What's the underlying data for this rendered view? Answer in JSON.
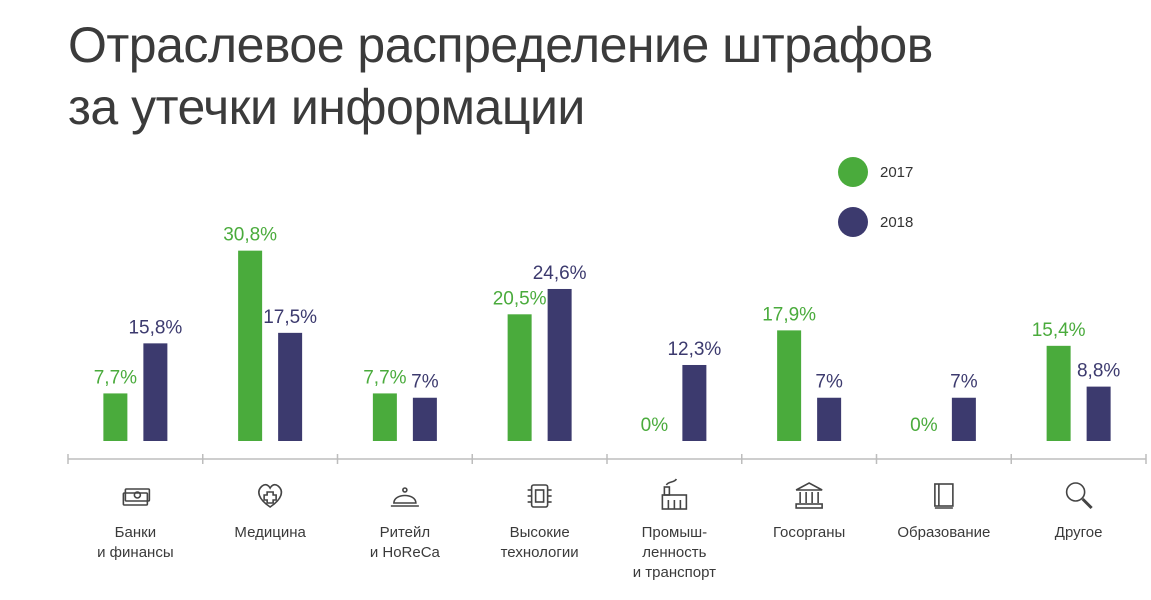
{
  "title_line1": "Отраслевое распределение штрафов",
  "title_line2": "за утечки информации",
  "colors": {
    "s2017": "#4aab3c",
    "s2018": "#3c3a6e",
    "axis": "#bdbdbd"
  },
  "chart_data": {
    "type": "bar",
    "title": "Отраслевое распределение штрафов за утечки информации",
    "categories": [
      "Банки и финансы",
      "Медицина",
      "Ритейл и HoReCa",
      "Высокие технологии",
      "Промыш-ленность и транспорт",
      "Госорганы",
      "Образование",
      "Другое"
    ],
    "category_lines": [
      [
        "Банки",
        "и финансы"
      ],
      [
        "Медицина"
      ],
      [
        "Ритейл",
        "и HoReCa"
      ],
      [
        "Высокие",
        "технологии"
      ],
      [
        "Промыш-",
        "ленность",
        "и транспорт"
      ],
      [
        "Госорганы"
      ],
      [
        "Образование"
      ],
      [
        "Другое"
      ]
    ],
    "category_icons": [
      "money-icon",
      "medical-heart-icon",
      "cloche-icon",
      "chip-icon",
      "factory-icon",
      "government-building-icon",
      "book-icon",
      "magnifier-icon"
    ],
    "series": [
      {
        "name": "2017",
        "values": [
          7.7,
          30.8,
          7.7,
          20.5,
          0,
          17.9,
          0,
          15.4
        ],
        "labels": [
          "7,7%",
          "30,8%",
          "7,7%",
          "20,5%",
          "0%",
          "17,9%",
          "0%",
          "15,4%"
        ]
      },
      {
        "name": "2018",
        "values": [
          15.8,
          17.5,
          7,
          24.6,
          12.3,
          7,
          7,
          8.8
        ],
        "labels": [
          "15,8%",
          "17,5%",
          "7%",
          "24,6%",
          "12,3%",
          "7%",
          "7%",
          "8,8%"
        ]
      }
    ],
    "ylim": [
      0,
      35
    ],
    "grid": false,
    "legend_position": "top-right"
  }
}
